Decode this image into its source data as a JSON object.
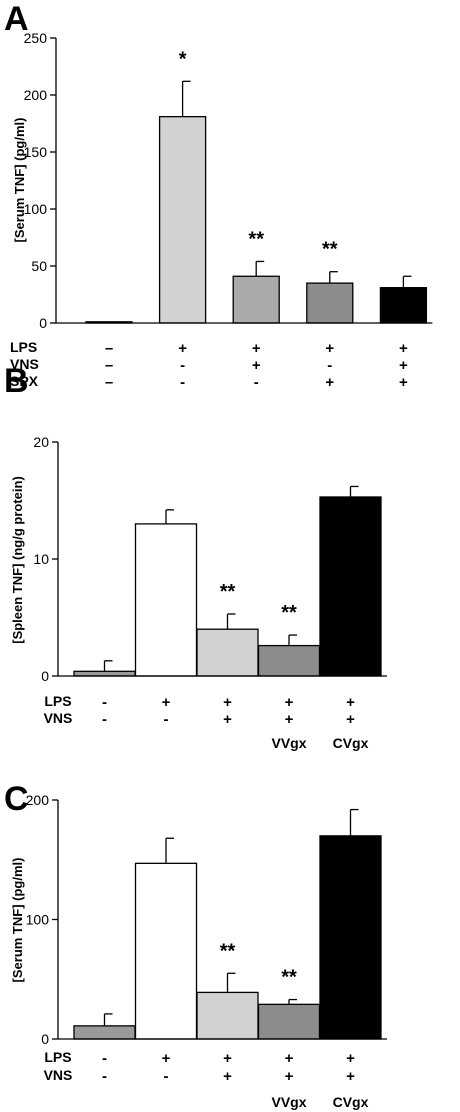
{
  "chart_data": [
    {
      "type": "bar",
      "panel_label": "A",
      "ylabel": "[Serum TNF] (pg/ml)",
      "ylim": [
        0,
        250
      ],
      "yticks": [
        0,
        50,
        100,
        150,
        200,
        250
      ],
      "values": [
        1,
        181,
        41,
        35,
        31
      ],
      "errors": [
        0,
        31,
        13,
        10,
        10
      ],
      "colors": [
        "#9a9a9a",
        "#d2d2d2",
        "#aaaaaa",
        "#8c8c8c",
        "#000000"
      ],
      "stars": [
        "",
        "*",
        "**",
        "**",
        ""
      ],
      "condition_rows": [
        {
          "label": "LPS",
          "values": [
            "–",
            "+",
            "+",
            "+",
            "+"
          ]
        },
        {
          "label": "VNS",
          "values": [
            "–",
            "-",
            "+",
            "-",
            "+"
          ]
        },
        {
          "label": "SPX",
          "values": [
            "–",
            "-",
            "-",
            "+",
            "+"
          ]
        }
      ],
      "extra_labels": [
        "",
        "",
        "",
        "",
        ""
      ],
      "grid": false
    },
    {
      "type": "bar",
      "panel_label": "B",
      "ylabel": "[Spleen TNF] (ng/g protein)",
      "ylim": [
        0,
        20
      ],
      "yticks": [
        0,
        10,
        20
      ],
      "values": [
        0.4,
        13.0,
        4.0,
        2.6,
        15.3
      ],
      "errors": [
        0.9,
        1.2,
        1.3,
        0.9,
        0.9
      ],
      "colors": [
        "#9a9a9a",
        "#ffffff",
        "#d2d2d2",
        "#8c8c8c",
        "#000000"
      ],
      "stars": [
        "",
        "",
        "**",
        "**",
        ""
      ],
      "condition_rows": [
        {
          "label": "LPS",
          "values": [
            "-",
            "+",
            "+",
            "+",
            "+"
          ]
        },
        {
          "label": "VNS",
          "values": [
            "-",
            "-",
            "+",
            "+",
            "+"
          ]
        }
      ],
      "extra_labels": [
        "",
        "",
        "",
        "VVgx",
        "CVgx"
      ],
      "grid": false
    },
    {
      "type": "bar",
      "panel_label": "C",
      "ylabel": "[Serum TNF] (pg/ml)",
      "ylim": [
        0,
        200
      ],
      "yticks": [
        0,
        100,
        200
      ],
      "values": [
        11,
        147,
        39,
        29,
        170
      ],
      "errors": [
        10,
        21,
        16,
        4,
        22
      ],
      "colors": [
        "#9a9a9a",
        "#ffffff",
        "#d2d2d2",
        "#8c8c8c",
        "#000000"
      ],
      "stars": [
        "",
        "",
        "**",
        "**",
        ""
      ],
      "condition_rows": [
        {
          "label": "LPS",
          "values": [
            "-",
            "+",
            "+",
            "+",
            "+"
          ]
        },
        {
          "label": "VNS",
          "values": [
            "-",
            "-",
            "+",
            "+",
            "+"
          ]
        }
      ],
      "extra_labels": [
        "",
        "",
        "",
        "VVgx",
        "CVgx"
      ],
      "grid": false
    }
  ]
}
